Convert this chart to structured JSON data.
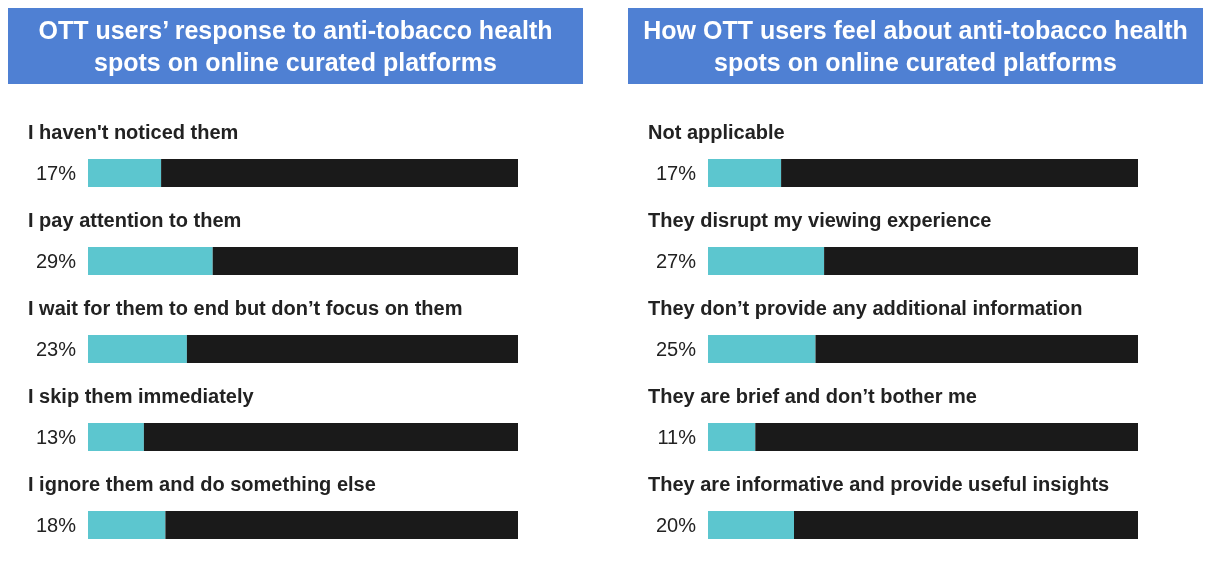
{
  "chart_data": [
    {
      "type": "bar",
      "orientation": "horizontal",
      "stacked": true,
      "title": "OTT users’ response to anti-tobacco health spots on online curated platforms",
      "categories": [
        "I haven't noticed them",
        "I pay attention to them",
        "I wait for them to end but don’t focus on them",
        "I skip them immediately",
        "I ignore them and do something else"
      ],
      "xlim": [
        0,
        100
      ],
      "tick_labels": false,
      "series": [
        {
          "color": "#5cc6cf",
          "values": [
            17,
            29,
            23,
            13,
            18
          ],
          "value_labels": [
            "17%",
            "29%",
            "23%",
            "13%",
            "18%"
          ]
        },
        {
          "color": "#1a1a1a",
          "values": [
            83,
            71,
            77,
            87,
            82
          ]
        }
      ]
    },
    {
      "type": "bar",
      "orientation": "horizontal",
      "stacked": true,
      "title": "How OTT users feel about anti-tobacco health spots on online curated platforms",
      "categories": [
        "Not applicable",
        "They disrupt my viewing experience",
        "They don’t provide any additional information",
        "They are brief and don’t bother me",
        "They are informative and provide useful insights"
      ],
      "xlim": [
        0,
        100
      ],
      "tick_labels": false,
      "series": [
        {
          "color": "#5cc6cf",
          "values": [
            17,
            27,
            25,
            11,
            20
          ],
          "value_labels": [
            "17%",
            "27%",
            "25%",
            "11%",
            "20%"
          ]
        },
        {
          "color": "#1a1a1a",
          "values": [
            83,
            73,
            75,
            89,
            80
          ]
        }
      ]
    }
  ]
}
